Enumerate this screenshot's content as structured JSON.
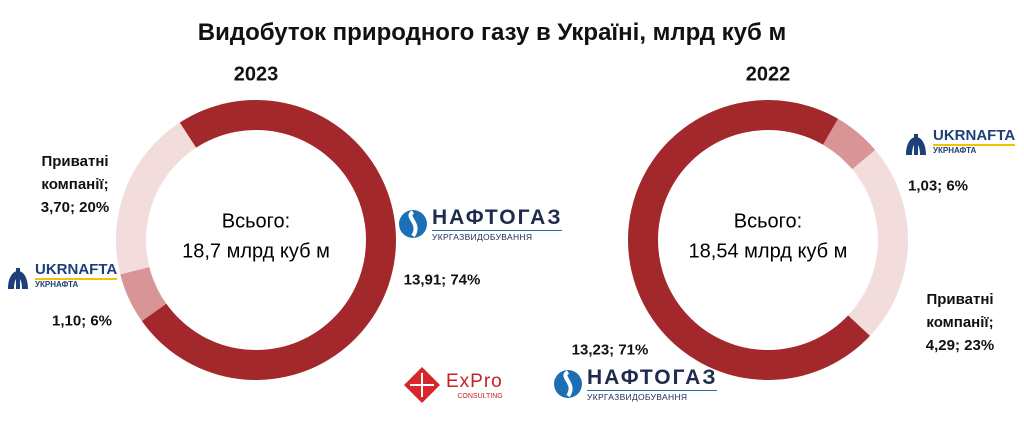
{
  "title": "Видобуток природного газу в Україні, млрд куб м",
  "chart_data": [
    {
      "type": "pie",
      "title": "2023",
      "center_label": [
        "Всього:",
        "18,7 млрд куб м"
      ],
      "categories": [
        "НАФТОГАЗ",
        "UKRNAFTA",
        "Приватні компанії;"
      ],
      "category_subtitles": [
        "УКРГАЗВИДОБУВАННЯ",
        "УКРНАФТА",
        null
      ],
      "values": [
        13.91,
        1.1,
        3.7
      ],
      "value_labels": [
        "13,91; 74%",
        "1,10; 6%",
        "3,70; 20%"
      ],
      "colors": [
        "#a3282b",
        "#d99596",
        "#f2dcdc"
      ]
    },
    {
      "type": "pie",
      "title": "2022",
      "center_label": [
        "Всього:",
        "18,54 млрд куб м"
      ],
      "categories": [
        "UKRNAFTA",
        "Приватні компанії;",
        "НАФТОГАЗ"
      ],
      "category_subtitles": [
        "УКРНАФТА",
        null,
        "УКРГАЗВИДОБУВАННЯ"
      ],
      "values": [
        1.03,
        4.29,
        13.23
      ],
      "value_labels": [
        "1,03; 6%",
        "4,29; 23%",
        "13,23; 71%"
      ],
      "colors": [
        "#d99596",
        "#f2dcdc",
        "#a3282b"
      ]
    }
  ],
  "footer_logo": {
    "name": "ExPro",
    "subtitle": "CONSULTING"
  }
}
